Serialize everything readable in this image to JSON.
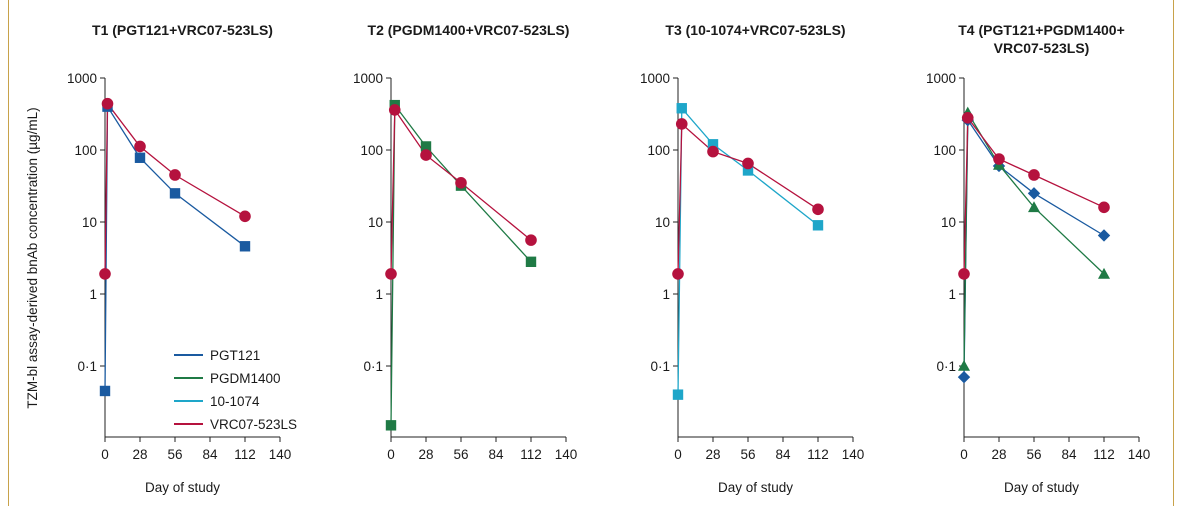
{
  "y_axis_label": "TZM-bl assay-derived bnAb concentration (µg/mL)",
  "legend": [
    {
      "name": "PGT121",
      "color": "#1a5aa0"
    },
    {
      "name": "PGDM1400",
      "color": "#1f7a45"
    },
    {
      "name": "10-1074",
      "color": "#1ea6c9"
    },
    {
      "name": "VRC07-523LS",
      "color": "#b5123e"
    }
  ],
  "chart_data": [
    {
      "type": "line",
      "title_lines": [
        "T1 (PGT121+VRC07-523LS)"
      ],
      "xlabel": "Day of study",
      "ylabel": "TZM-bl assay-derived bnAb concentration (µg/mL)",
      "x_ticks": [
        "0",
        "28",
        "56",
        "84",
        "112",
        "140"
      ],
      "y_ticks": [
        "0·1",
        "1",
        "10",
        "100",
        "1000"
      ],
      "xlim": [
        0,
        140
      ],
      "ylim": [
        0.01,
        1000
      ],
      "y_scale": "log",
      "series": [
        {
          "name": "PGT121",
          "color": "#1a5aa0",
          "marker": "square",
          "x": [
            0,
            2,
            28,
            56,
            112
          ],
          "y": [
            0.045,
            400,
            78,
            25,
            4.6
          ]
        },
        {
          "name": "VRC07-523LS",
          "color": "#b5123e",
          "marker": "circle",
          "x": [
            0,
            2,
            28,
            56,
            112
          ],
          "y": [
            1.9,
            440,
            112,
            45,
            12
          ]
        }
      ]
    },
    {
      "type": "line",
      "title_lines": [
        "T2 (PGDM1400+VRC07-523LS)"
      ],
      "xlabel": "",
      "x_ticks": [
        "0",
        "28",
        "56",
        "84",
        "112",
        "140"
      ],
      "y_ticks": [
        "0·1",
        "1",
        "10",
        "100",
        "1000"
      ],
      "xlim": [
        0,
        140
      ],
      "ylim": [
        0.01,
        1000
      ],
      "y_scale": "log",
      "series": [
        {
          "name": "PGDM1400",
          "color": "#1f7a45",
          "marker": "square",
          "x": [
            0,
            3,
            28,
            56,
            112
          ],
          "y": [
            0.015,
            420,
            112,
            32,
            2.8
          ]
        },
        {
          "name": "VRC07-523LS",
          "color": "#b5123e",
          "marker": "circle",
          "x": [
            0,
            3,
            28,
            56,
            112
          ],
          "y": [
            1.9,
            360,
            85,
            35,
            5.6
          ]
        }
      ]
    },
    {
      "type": "line",
      "title_lines": [
        "T3 (10-1074+VRC07-523LS)"
      ],
      "xlabel": "Day of study",
      "x_ticks": [
        "0",
        "28",
        "56",
        "84",
        "112",
        "140"
      ],
      "y_ticks": [
        "0·1",
        "1",
        "10",
        "100",
        "1000"
      ],
      "xlim": [
        0,
        140
      ],
      "ylim": [
        0.01,
        1000
      ],
      "y_scale": "log",
      "series": [
        {
          "name": "10-1074",
          "color": "#1ea6c9",
          "marker": "square",
          "x": [
            0,
            3,
            28,
            56,
            112
          ],
          "y": [
            0.04,
            380,
            120,
            52,
            9
          ]
        },
        {
          "name": "VRC07-523LS",
          "color": "#b5123e",
          "marker": "circle",
          "x": [
            0,
            3,
            28,
            56,
            112
          ],
          "y": [
            1.9,
            230,
            95,
            65,
            15
          ]
        }
      ]
    },
    {
      "type": "line",
      "title_lines": [
        "T4 (PGT121+PGDM1400+",
        "VRC07-523LS)"
      ],
      "xlabel": "Day of study",
      "x_ticks": [
        "0",
        "28",
        "56",
        "84",
        "112",
        "140"
      ],
      "y_ticks": [
        "0·1",
        "1",
        "10",
        "100",
        "1000"
      ],
      "xlim": [
        0,
        140
      ],
      "ylim": [
        0.01,
        1000
      ],
      "y_scale": "log",
      "series": [
        {
          "name": "PGT121",
          "color": "#1a5aa0",
          "marker": "diamond",
          "x": [
            0,
            3,
            28,
            56,
            112
          ],
          "y": [
            0.07,
            260,
            60,
            25,
            6.5
          ]
        },
        {
          "name": "PGDM1400",
          "color": "#1f7a45",
          "marker": "triangle",
          "x": [
            0,
            3,
            28,
            56,
            112
          ],
          "y": [
            0.1,
            330,
            62,
            16,
            1.9
          ]
        },
        {
          "name": "VRC07-523LS",
          "color": "#b5123e",
          "marker": "circle",
          "x": [
            0,
            3,
            28,
            56,
            112
          ],
          "y": [
            1.9,
            280,
            75,
            45,
            16
          ]
        }
      ]
    }
  ]
}
